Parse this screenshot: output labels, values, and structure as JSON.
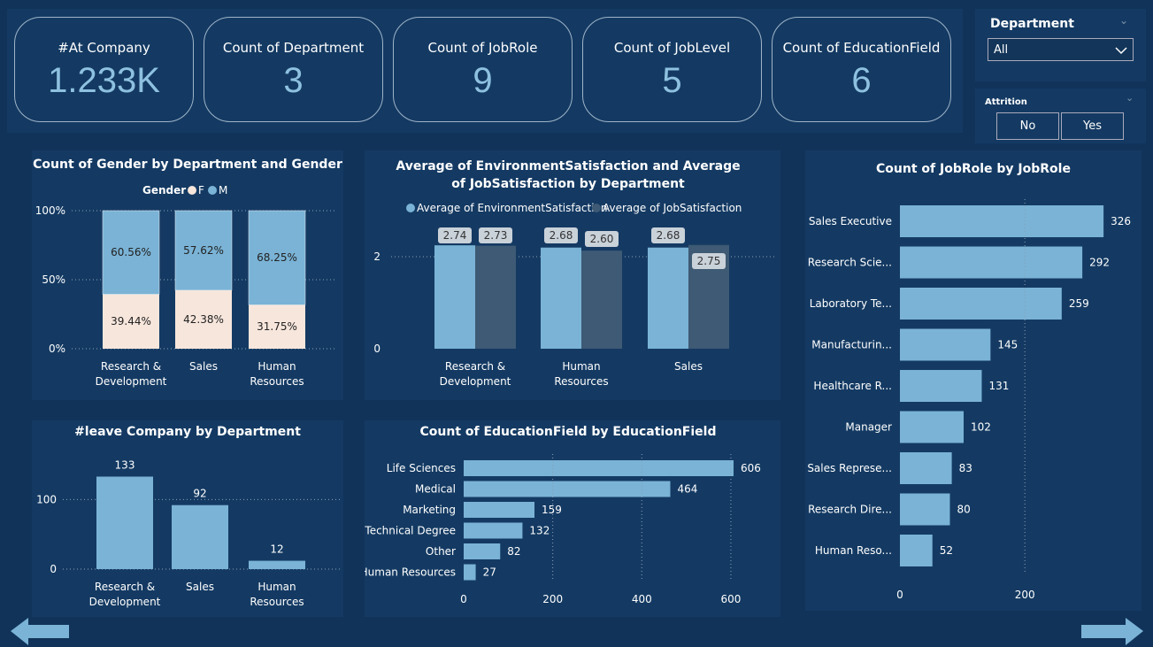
{
  "kpis": [
    {
      "label": "#At Company",
      "value": "1.233K"
    },
    {
      "label": "Count of Department",
      "value": "3"
    },
    {
      "label": "Count of JobRole",
      "value": "9"
    },
    {
      "label": "Count of JobLevel",
      "value": "5"
    },
    {
      "label": "Count of EducationField",
      "value": "6"
    }
  ],
  "slicers": {
    "department": {
      "label": "Department",
      "value": "All"
    },
    "attrition": {
      "label": "Attrition",
      "options": [
        "No",
        "Yes"
      ]
    }
  },
  "colors": {
    "bg": "#11335a",
    "panel": "#143a63",
    "bar": "#7ab3d6",
    "bar_dark": "#3e5a74",
    "female": "#f7e6dc"
  },
  "chart_data": [
    {
      "type": "bar",
      "stacked": "100%",
      "title": "Count of Gender by Department and Gender",
      "legend_title": "Gender",
      "categories": [
        "Research & Development",
        "Sales",
        "Human Resources"
      ],
      "series": [
        {
          "name": "F",
          "values": [
            39.44,
            42.38,
            31.75
          ]
        },
        {
          "name": "M",
          "values": [
            60.56,
            57.62,
            68.25
          ]
        }
      ],
      "data_labels": {
        "F": [
          "39.44%",
          "42.38%",
          "31.75%"
        ],
        "M": [
          "60.56%",
          "57.62%",
          "68.25%"
        ]
      },
      "yticks": [
        "0%",
        "50%",
        "100%"
      ]
    },
    {
      "type": "bar",
      "title": "Average of EnvironmentSatisfaction and Average of JobSatisfaction by Department",
      "categories": [
        "Research & Development",
        "Human Resources",
        "Sales"
      ],
      "series": [
        {
          "name": "Average of EnvironmentSatisfaction",
          "values": [
            2.74,
            2.68,
            2.68
          ]
        },
        {
          "name": "Average of JobSatisfaction",
          "values": [
            2.73,
            2.6,
            2.75
          ]
        }
      ],
      "data_labels": [
        [
          "2.74",
          "2.68",
          "2.68"
        ],
        [
          "2.73",
          "2.60",
          "2.75"
        ]
      ],
      "yticks": [
        "0",
        "2"
      ],
      "ylim": [
        0,
        3
      ]
    },
    {
      "type": "bar",
      "orientation": "horizontal",
      "title": "Count of JobRole by JobRole",
      "categories": [
        "Sales Executive",
        "Research Scie...",
        "Laboratory Te...",
        "Manufacturin...",
        "Healthcare R...",
        "Manager",
        "Sales Represe...",
        "Research Dire...",
        "Human Reso..."
      ],
      "values": [
        326,
        292,
        259,
        145,
        131,
        102,
        83,
        80,
        52
      ],
      "xticks": [
        "0",
        "200"
      ],
      "xlim": [
        0,
        340
      ]
    },
    {
      "type": "bar",
      "title": "#leave Company by Department",
      "categories": [
        "Research & Development",
        "Sales",
        "Human Resources"
      ],
      "values": [
        133,
        92,
        12
      ],
      "yticks": [
        "0",
        "100"
      ],
      "ylim": [
        0,
        140
      ]
    },
    {
      "type": "bar",
      "orientation": "horizontal",
      "title": "Count of EducationField by EducationField",
      "categories": [
        "Life Sciences",
        "Medical",
        "Marketing",
        "Technical Degree",
        "Other",
        "Human Resources"
      ],
      "values": [
        606,
        464,
        159,
        132,
        82,
        27
      ],
      "xticks": [
        "0",
        "200",
        "400",
        "600"
      ],
      "xlim": [
        0,
        620
      ]
    }
  ]
}
